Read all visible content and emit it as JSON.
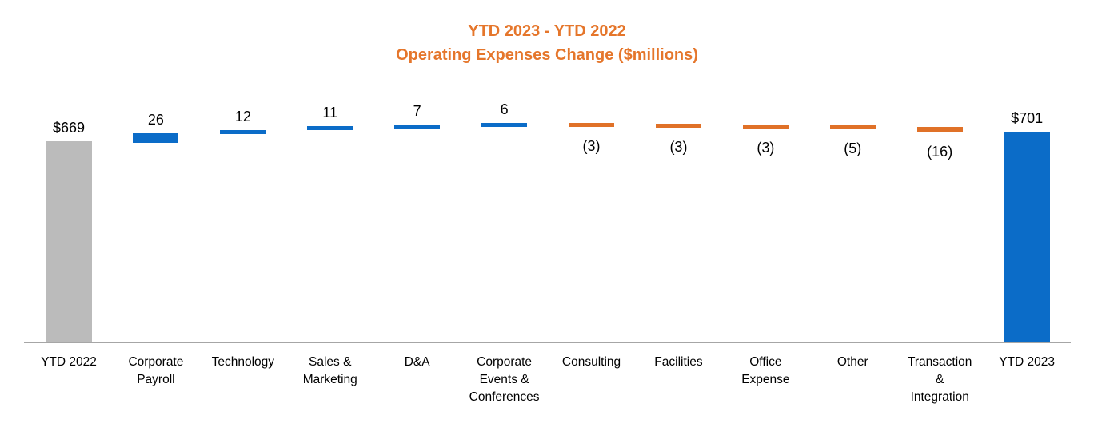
{
  "chart_data": {
    "type": "bar",
    "subtype": "waterfall",
    "title_line1": "YTD 2023 - YTD 2022",
    "title_line2": "Operating Expenses Change ($millions)",
    "legend": "none",
    "gridlines": false,
    "value_axis_visible": false,
    "value_range_implied": [
      0,
      750
    ],
    "items": [
      {
        "category": "YTD 2022",
        "lines": [
          "YTD 2022"
        ],
        "value": 669,
        "display": "$669",
        "role": "start-total"
      },
      {
        "category": "Corporate Payroll",
        "lines": [
          "Corporate",
          "Payroll"
        ],
        "value": 26,
        "display": "26",
        "role": "increase"
      },
      {
        "category": "Technology",
        "lines": [
          "Technology"
        ],
        "value": 12,
        "display": "12",
        "role": "increase"
      },
      {
        "category": "Sales & Marketing",
        "lines": [
          "Sales &",
          "Marketing"
        ],
        "value": 11,
        "display": "11",
        "role": "increase"
      },
      {
        "category": "D&A",
        "lines": [
          "D&A"
        ],
        "value": 7,
        "display": "7",
        "role": "increase"
      },
      {
        "category": "Corporate Events & Conferences",
        "lines": [
          "Corporate",
          "Events &",
          "Conferences"
        ],
        "value": 6,
        "display": "6",
        "role": "increase"
      },
      {
        "category": "Consulting",
        "lines": [
          "Consulting"
        ],
        "value": -3,
        "display": "(3)",
        "role": "decrease"
      },
      {
        "category": "Facilities",
        "lines": [
          "Facilities"
        ],
        "value": -3,
        "display": "(3)",
        "role": "decrease"
      },
      {
        "category": "Office Expense",
        "lines": [
          "Office",
          "Expense"
        ],
        "value": -3,
        "display": "(3)",
        "role": "decrease"
      },
      {
        "category": "Other",
        "lines": [
          "Other"
        ],
        "value": -5,
        "display": "(5)",
        "role": "decrease"
      },
      {
        "category": "Transaction & Integration",
        "lines": [
          "Transaction",
          "&",
          "Integration"
        ],
        "value": -16,
        "display": "(16)",
        "role": "decrease"
      },
      {
        "category": "YTD 2023",
        "lines": [
          "YTD 2023"
        ],
        "value": 701,
        "display": "$701",
        "role": "end-total"
      }
    ],
    "colors": {
      "start_total": "#BBBBBB",
      "end_total": "#0B6CC8",
      "increase": "#0B6CC8",
      "decrease": "#E07128",
      "title": "#E5762B",
      "axis": "#A6A6A6",
      "label_text": "#000000"
    }
  }
}
